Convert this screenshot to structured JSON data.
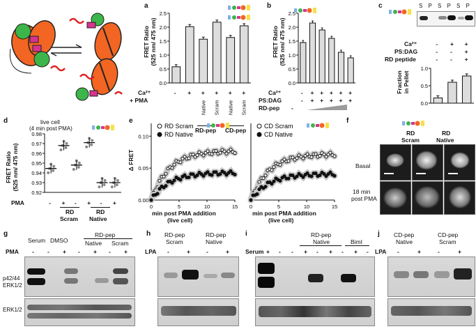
{
  "panels": {
    "a": {
      "label": "a",
      "ylabel": "FRET Ratio",
      "yunit": "(525 nm/ 475 nm)",
      "row1_label": "Ca²⁺",
      "row2_label": "+ PMA",
      "ticks": [
        "0.0",
        "0.5",
        "1.0",
        "1.5",
        "2.0",
        "2.5"
      ],
      "bar_labels": [
        "-",
        "+",
        "Native",
        "Scram",
        "Native",
        "Scram"
      ],
      "group1": "RD-pep",
      "group2": "CD-pep"
    },
    "b": {
      "label": "b",
      "ylabel": "FRET Ratio",
      "yunit": "(525 nm/ 475 nm)",
      "row1_label": "Ca²⁺",
      "row2_label": "PS:DAG",
      "row3_label": "RD-pep",
      "ticks": [
        "0.0",
        "0.5",
        "1.0",
        "1.5",
        "2.0",
        "2.5"
      ],
      "row1": [
        "-",
        "+",
        "+",
        "+",
        "+",
        "+"
      ],
      "row2": [
        "-",
        "+",
        "+",
        "+",
        "+",
        "+"
      ],
      "row3": "-"
    },
    "c": {
      "label": "c",
      "blot_lanes": [
        "S",
        "P",
        "S",
        "P",
        "S",
        "P"
      ],
      "row1_label": "Ca²⁺",
      "row2_label": "PS:DAG",
      "row3_label": "RD peptide",
      "row1": [
        "-",
        "+",
        "+"
      ],
      "row2": [
        "-",
        "-",
        "+"
      ],
      "row3": [
        "-",
        "-",
        "+"
      ],
      "ylabel": "Fraction",
      "yunit": "in Pellet",
      "ticks": [
        "0.0",
        "0.5",
        "1.0"
      ]
    },
    "d": {
      "label": "d",
      "title": "live cell",
      "subtitle": "(4 min post PMA)",
      "ylabel": "FRET Ratio",
      "yunit": "(525 nm/ 475 nm)",
      "ticks": [
        "0.92",
        "0.93",
        "0.94",
        "0.95",
        "0.96",
        "0.97",
        "0.98"
      ],
      "pma_label": "PMA",
      "pma": [
        "-",
        "+",
        "-",
        "+",
        "-",
        "+"
      ],
      "group1": "RD",
      "group1b": "Scram",
      "group2": "RD",
      "group2b": "Native"
    },
    "e": {
      "label": "e",
      "ylabel": "Δ FRET",
      "ticks": [
        "0.00",
        "0.05",
        "0.10"
      ],
      "xticks": [
        "0",
        "5",
        "10",
        "15"
      ],
      "xlabel": "min post PMA addition",
      "xlabel2": "(live cell)",
      "left_legend": [
        "RD Scram",
        "RD Native"
      ],
      "right_legend": [
        "CD Scram",
        "CD Native"
      ]
    },
    "f": {
      "label": "f",
      "cols": [
        "RD",
        "RD"
      ],
      "cols2": [
        "Scram",
        "Native"
      ],
      "row1": "Basal",
      "row2": "18 min",
      "row2b": "post PMA"
    },
    "g": {
      "label": "g",
      "lanes": [
        "Serum",
        "DMSO"
      ],
      "group": "RD-pep",
      "sub": [
        "Native",
        "Scram"
      ],
      "pma_label": "PMA",
      "pma": [
        "-",
        "-",
        "+",
        "-",
        "+",
        "-",
        "+"
      ],
      "band1": "p42/44",
      "band1b": "ERK1/2",
      "band2": "ERK1/2"
    },
    "h": {
      "label": "h",
      "groups": [
        "RD-pep",
        "RD-pep"
      ],
      "groups2": [
        "Scram",
        "Native"
      ],
      "lpa_label": "LPA",
      "lpa": [
        "-",
        "+",
        "-",
        "+"
      ]
    },
    "i": {
      "label": "i",
      "serum_label": "Serum",
      "serum": "+",
      "group": "RD-pep",
      "group2": "Native",
      "bim": "BimI",
      "signs": [
        "-",
        "-",
        "+",
        "-",
        "+",
        "-",
        "+",
        "-"
      ]
    },
    "j": {
      "label": "j",
      "groups": [
        "CD-pep",
        "CD-pep"
      ],
      "groups2": [
        "Native",
        "Scram"
      ],
      "lpa_label": "LPA",
      "lpa": [
        "-",
        "+",
        "-",
        "+"
      ]
    }
  },
  "chart_data": [
    {
      "type": "bar",
      "panel": "a",
      "categories": [
        "Ca- PMA-",
        "Ca+ PMA+",
        "RD Native",
        "RD Scram",
        "CD Native",
        "CD Scram"
      ],
      "values": [
        0.58,
        2.02,
        1.57,
        2.18,
        1.63,
        2.05
      ],
      "ylim": [
        0,
        2.5
      ],
      "ylabel": "FRET Ratio (525 nm/ 475 nm)"
    },
    {
      "type": "bar",
      "panel": "b",
      "categories": [
        "1",
        "2",
        "3",
        "4",
        "5",
        "6"
      ],
      "values": [
        1.45,
        2.15,
        1.9,
        1.6,
        1.1,
        0.9
      ],
      "ylim": [
        0,
        2.5
      ],
      "ylabel": "FRET Ratio (525 nm/ 475 nm)"
    },
    {
      "type": "bar",
      "panel": "c",
      "categories": [
        "1",
        "2",
        "3"
      ],
      "values": [
        0.15,
        0.6,
        0.78
      ],
      "ylim": [
        0,
        1.0
      ],
      "ylabel": "Fraction in Pellet"
    },
    {
      "type": "scatter",
      "panel": "d",
      "categories": [
        "1",
        "2",
        "3",
        "4",
        "5",
        "6"
      ],
      "means": [
        0.9445,
        0.968,
        0.948,
        0.971,
        0.93,
        0.93
      ],
      "ylim": [
        0.92,
        0.98
      ],
      "ylabel": "FRET Ratio (525 nm/ 475 nm)"
    },
    {
      "type": "line",
      "panel": "e-left",
      "x": [
        0,
        15
      ],
      "series": [
        {
          "name": "RD Scram",
          "end": 0.077
        },
        {
          "name": "RD Native",
          "end": 0.043
        }
      ],
      "ylim": [
        0,
        0.12
      ],
      "xlabel": "min post PMA addition"
    },
    {
      "type": "line",
      "panel": "e-right",
      "x": [
        0,
        15
      ],
      "series": [
        {
          "name": "CD Scram",
          "end": 0.072
        },
        {
          "name": "CD Native",
          "end": 0.041
        }
      ],
      "ylim": [
        0,
        0.12
      ],
      "xlabel": "min post PMA addition"
    }
  ]
}
